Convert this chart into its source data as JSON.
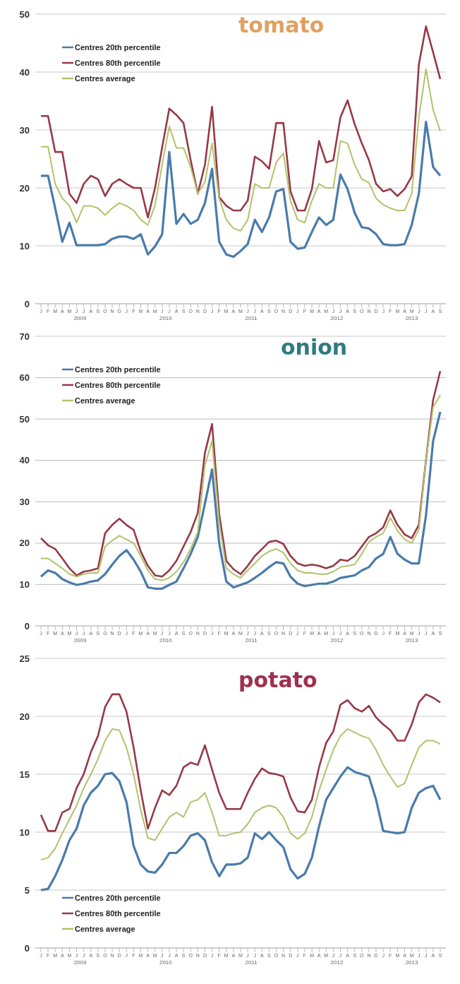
{
  "chart_data": [
    {
      "type": "line",
      "title": "tomato",
      "categories": [
        "J",
        "F",
        "M",
        "A",
        "M",
        "J",
        "J",
        "A",
        "S",
        "O",
        "N",
        "D",
        "J",
        "F",
        "M",
        "A",
        "M",
        "J",
        "J",
        "A",
        "S",
        "O",
        "N",
        "D",
        "J",
        "F",
        "M",
        "A",
        "M",
        "J",
        "J",
        "A",
        "S",
        "O",
        "N",
        "D",
        "J",
        "F",
        "M",
        "A",
        "M",
        "J",
        "J",
        "A",
        "S",
        "O",
        "N",
        "D",
        "J",
        "F",
        "M",
        "A",
        "M",
        "J",
        "J",
        "A",
        "S"
      ],
      "series": [
        {
          "name": "Centres 20th percentile",
          "color": "#4a7bab",
          "values": [
            22.1,
            22.1,
            16.5,
            10.7,
            14,
            10.1,
            10.1,
            10.1,
            10.1,
            10.3,
            11.2,
            11.6,
            11.6,
            11.2,
            12,
            8.5,
            9.9,
            12,
            26.2,
            13.8,
            15.5,
            13.8,
            14.5,
            17.4,
            23.3,
            10.7,
            8.5,
            8.1,
            9.1,
            10.3,
            14.5,
            12.4,
            14.9,
            19.4,
            19.8,
            10.7,
            9.5,
            9.7,
            12.4,
            14.9,
            13.6,
            14.5,
            22.3,
            19.8,
            15.7,
            13.2,
            13,
            12,
            10.3,
            10.1,
            10.1,
            10.3,
            13.6,
            19,
            31.4,
            23.6,
            22.1
          ]
        },
        {
          "name": "Centres 80th percentile",
          "color": "#963a48",
          "values": [
            32.4,
            32.4,
            26.2,
            26.2,
            19,
            17.4,
            20.7,
            22.1,
            21.5,
            18.6,
            20.7,
            21.5,
            20.7,
            20,
            20,
            14.9,
            20,
            27,
            33.7,
            32.6,
            31.2,
            24.8,
            19,
            24,
            34,
            18.4,
            16.9,
            16.1,
            16.1,
            17.8,
            25.4,
            24.6,
            23.3,
            31.2,
            31.2,
            19.4,
            16.1,
            16.1,
            19.8,
            28.1,
            24.4,
            24.8,
            32.2,
            35.1,
            31,
            27.7,
            24.8,
            20.7,
            19.4,
            19.8,
            18.6,
            19.8,
            22,
            41.3,
            47.9,
            43.4,
            38.8
          ]
        },
        {
          "name": "Centres average",
          "color": "#b3c26a",
          "values": [
            27.1,
            27.1,
            20.7,
            18.2,
            16.9,
            14,
            16.9,
            16.9,
            16.5,
            15.3,
            16.5,
            17.4,
            16.9,
            16.1,
            14.5,
            13.6,
            17,
            24,
            30.6,
            26.9,
            26.9,
            23.6,
            19,
            21,
            27.7,
            18.2,
            14.5,
            13,
            12.6,
            14.5,
            20.7,
            20,
            20,
            24.4,
            26,
            17.8,
            14.5,
            14,
            17.8,
            20.7,
            20,
            20,
            28.1,
            27.7,
            24,
            21.5,
            20.9,
            18.2,
            17.1,
            16.5,
            16.1,
            16.1,
            19,
            32.2,
            40.5,
            33.5,
            29.8
          ]
        }
      ],
      "ylim": [
        0,
        50
      ],
      "yticks": [
        0,
        10,
        20,
        30,
        40,
        50
      ],
      "grid": "y",
      "legend": "top left",
      "marker": "none",
      "line_style": "solid",
      "annotations": [
        "2009",
        "2010",
        "2011",
        "2012",
        "2013"
      ]
    },
    {
      "type": "line",
      "title": "onion",
      "categories": [
        "J",
        "F",
        "M",
        "A",
        "M",
        "J",
        "J",
        "A",
        "S",
        "O",
        "N",
        "D",
        "J",
        "F",
        "M",
        "A",
        "M",
        "J",
        "J",
        "A",
        "S",
        "O",
        "N",
        "D",
        "J",
        "F",
        "M",
        "A",
        "M",
        "J",
        "J",
        "A",
        "S",
        "O",
        "N",
        "D",
        "J",
        "F",
        "M",
        "A",
        "M",
        "J",
        "J",
        "A",
        "S",
        "O",
        "N",
        "D",
        "J",
        "F",
        "M",
        "A",
        "M",
        "J",
        "J",
        "A",
        "S"
      ],
      "series": [
        {
          "name": "Centres 20th percentile",
          "color": "#4a7bab",
          "values": [
            11.9,
            13.4,
            12.8,
            11.3,
            10.5,
            9.9,
            10.2,
            10.7,
            11,
            12.5,
            14.8,
            16.9,
            18.3,
            16,
            13.1,
            9.3,
            9,
            9,
            9.9,
            10.7,
            13.9,
            17.4,
            21.5,
            29.6,
            37.8,
            20,
            10.7,
            9.3,
            9.9,
            10.5,
            11.6,
            12.8,
            14.2,
            15.4,
            15.1,
            11.9,
            10.2,
            9.6,
            9.9,
            10.2,
            10.2,
            10.7,
            11.6,
            11.9,
            12.2,
            13.4,
            14.2,
            16.3,
            17.4,
            21.5,
            17.4,
            16,
            15.1,
            15.1,
            26.7,
            44.7,
            51.7
          ]
        },
        {
          "name": "Centres 80th percentile",
          "color": "#963a48",
          "values": [
            21.2,
            19.5,
            18.6,
            16.3,
            13.9,
            12.2,
            13.1,
            13.4,
            13.9,
            22.4,
            24.4,
            25.9,
            24.4,
            23.2,
            18,
            14.5,
            12.2,
            11.9,
            13.4,
            15.7,
            19.2,
            22.7,
            27.3,
            41.8,
            48.8,
            27,
            15.7,
            13.7,
            12.5,
            14.5,
            16.9,
            18.6,
            20.3,
            20.6,
            19.8,
            16.9,
            15.1,
            14.5,
            14.8,
            14.5,
            13.9,
            14.5,
            16,
            15.7,
            16.9,
            19.2,
            21.5,
            22.4,
            23.8,
            27.9,
            24.4,
            22.1,
            21.2,
            24.4,
            40.1,
            54.6,
            61.6
          ]
        },
        {
          "name": "Centres average",
          "color": "#b3c26a",
          "values": [
            16.3,
            16.3,
            15.1,
            13.9,
            12.5,
            11.9,
            12.5,
            12.8,
            12.8,
            19.2,
            20.6,
            21.8,
            20.9,
            20,
            16.9,
            13.4,
            11.3,
            11,
            11.6,
            13.1,
            15.4,
            18.6,
            22.7,
            38.9,
            44.7,
            25,
            13.9,
            12.5,
            11.6,
            13.4,
            15.1,
            16.9,
            18,
            18.6,
            17.7,
            15.1,
            13.4,
            12.8,
            12.8,
            12.5,
            12.5,
            13.1,
            14.2,
            14.5,
            14.8,
            17.4,
            20.3,
            21.5,
            22.4,
            26.1,
            23,
            20.9,
            20,
            23.2,
            40.1,
            52.9,
            55.8
          ]
        }
      ],
      "ylim": [
        0,
        70
      ],
      "yticks": [
        0,
        10,
        20,
        30,
        40,
        50,
        60,
        70
      ],
      "grid": "y",
      "legend": "top left",
      "marker": "none",
      "line_style": "solid",
      "annotations": [
        "2009",
        "2010",
        "2011",
        "2012",
        "2013"
      ]
    },
    {
      "type": "line",
      "title": "potato",
      "categories": [
        "J",
        "F",
        "M",
        "A",
        "M",
        "J",
        "J",
        "A",
        "S",
        "O",
        "N",
        "D",
        "J",
        "F",
        "M",
        "A",
        "M",
        "J",
        "J",
        "A",
        "S",
        "O",
        "N",
        "D",
        "J",
        "F",
        "M",
        "A",
        "M",
        "J",
        "J",
        "A",
        "S",
        "O",
        "N",
        "D",
        "J",
        "F",
        "M",
        "A",
        "M",
        "J",
        "J",
        "A",
        "S",
        "O",
        "N",
        "D",
        "J",
        "F",
        "M",
        "A",
        "M",
        "J",
        "J",
        "A",
        "S"
      ],
      "series": [
        {
          "name": "Centres 20th percentile",
          "color": "#4a7bab",
          "values": [
            5,
            5.1,
            6.2,
            7.6,
            9.3,
            10.3,
            12.3,
            13.4,
            14,
            15,
            15.1,
            14.4,
            12.6,
            8.8,
            7.2,
            6.6,
            6.5,
            7.2,
            8.2,
            8.2,
            8.8,
            9.7,
            9.9,
            9.3,
            7.4,
            6.2,
            7.2,
            7.2,
            7.3,
            7.8,
            9.9,
            9.4,
            10,
            9.3,
            8.7,
            6.8,
            6,
            6.4,
            7.8,
            10.5,
            12.8,
            13.8,
            14.8,
            15.6,
            15.2,
            15,
            14.8,
            12.8,
            10.1,
            10,
            9.9,
            10,
            12.1,
            13.4,
            13.8,
            14,
            12.8
          ]
        },
        {
          "name": "Centres 80th percentile",
          "color": "#963a48",
          "values": [
            11.5,
            10.1,
            10.1,
            11.7,
            12,
            13.8,
            15,
            16.9,
            18.3,
            20.8,
            21.9,
            21.9,
            20.4,
            17.3,
            13.6,
            10.3,
            12.1,
            13.6,
            13.2,
            14,
            15.6,
            16,
            15.8,
            17.5,
            15.4,
            13.4,
            12,
            12,
            12,
            13.4,
            14.6,
            15.5,
            15.1,
            15,
            14.8,
            13,
            11.8,
            11.7,
            12.8,
            15.6,
            17.7,
            18.7,
            21,
            21.4,
            20.7,
            20.4,
            20.9,
            19.9,
            19.3,
            18.8,
            17.9,
            17.9,
            19.3,
            21.2,
            21.9,
            21.6,
            21.2
          ]
        },
        {
          "name": "Centres average",
          "color": "#b3c26a",
          "values": [
            7.6,
            7.8,
            8.6,
            9.9,
            11.1,
            12.3,
            13.8,
            15,
            16.3,
            17.9,
            18.9,
            18.8,
            17.3,
            15,
            11.9,
            9.5,
            9.3,
            10.3,
            11.3,
            11.7,
            11.3,
            12.6,
            12.8,
            13.4,
            11.7,
            9.7,
            9.7,
            9.9,
            10,
            10.7,
            11.7,
            12.1,
            12.3,
            12.1,
            11.3,
            9.9,
            9.4,
            9.9,
            11.3,
            13.6,
            15.4,
            17.1,
            18.3,
            18.9,
            18.6,
            18.3,
            18.1,
            17.1,
            15.8,
            14.8,
            13.9,
            14.2,
            15.8,
            17.3,
            17.9,
            17.9,
            17.6
          ]
        }
      ],
      "ylim": [
        0,
        25
      ],
      "yticks": [
        0,
        5,
        10,
        15,
        20,
        25
      ],
      "grid": "y",
      "legend": "bottom left",
      "marker": "none",
      "line_style": "solid",
      "annotations": [
        "2009",
        "2010",
        "2011",
        "2012",
        "2013"
      ]
    }
  ]
}
